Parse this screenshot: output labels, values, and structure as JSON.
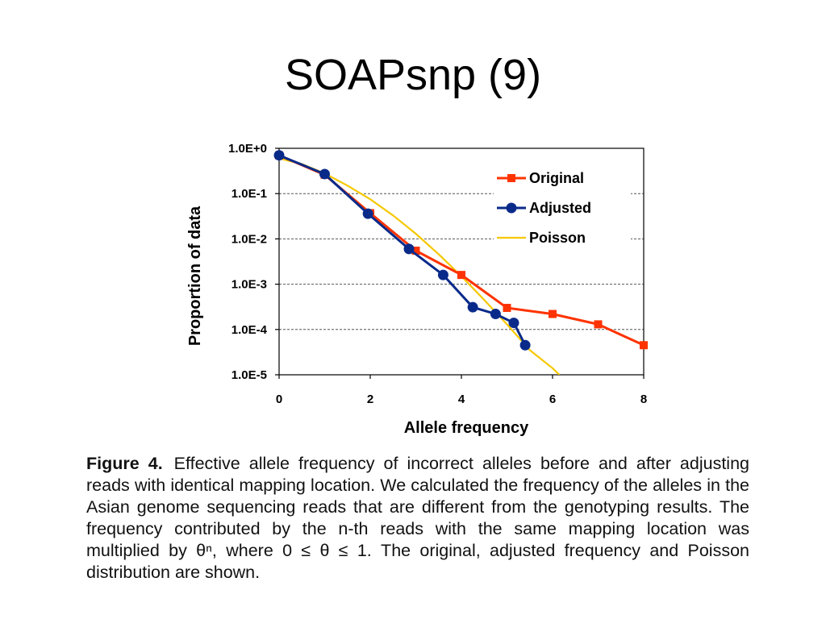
{
  "slide": {
    "title": "SOAPsnp (9)"
  },
  "chart_data": {
    "type": "line",
    "xlabel": "Allele frequency",
    "ylabel": "Proportion of data",
    "x_ticks": [
      0,
      2,
      4,
      6,
      8
    ],
    "y_scale": "log",
    "y_ticks": [
      1,
      0.1,
      0.01,
      0.001,
      0.0001,
      1e-05
    ],
    "y_tick_labels": [
      "1.0E+0",
      "1.0E-1",
      "1.0E-2",
      "1.0E-3",
      "1.0E-4",
      "1.0E-5"
    ],
    "xlim": [
      0,
      8
    ],
    "ylim": [
      1e-05,
      1
    ],
    "grid": "horizontal dashed",
    "legend_position": "top-right",
    "series": [
      {
        "name": "Original",
        "color": "#ff3300",
        "marker": "square",
        "x": [
          0,
          1,
          2,
          3,
          4,
          5,
          6,
          7,
          8
        ],
        "y": [
          0.7,
          0.26,
          0.037,
          0.0055,
          0.0016,
          0.0003,
          0.00022,
          0.00013,
          4.5e-05
        ]
      },
      {
        "name": "Adjusted",
        "color": "#0a2a8a",
        "marker": "circle",
        "x": [
          0,
          1,
          1.95,
          2.85,
          3.6,
          4.25,
          4.75,
          5.15,
          5.4
        ],
        "y": [
          0.7,
          0.27,
          0.036,
          0.006,
          0.0016,
          0.00031,
          0.00022,
          0.00014,
          4.5e-05
        ]
      },
      {
        "name": "Poisson",
        "color": "#f5c800",
        "marker": "none",
        "x": [
          0,
          0.5,
          1,
          1.5,
          2,
          2.5,
          3,
          3.5,
          4,
          4.5,
          5,
          5.5,
          6,
          6.15
        ],
        "y": [
          0.6,
          0.45,
          0.28,
          0.15,
          0.075,
          0.033,
          0.013,
          0.0046,
          0.0015,
          0.00045,
          0.00013,
          3.5e-05,
          1.4e-05,
          1e-05
        ]
      }
    ]
  },
  "caption": {
    "label": "Figure 4.",
    "text": "Effective allele frequency of incorrect alleles before and after adjusting reads with identical mapping location. We calculated the frequency of the alleles in the Asian genome sequencing reads that are different from the genotyping results. The frequency contributed by the n-th reads with the same mapping location was multiplied by θⁿ, where 0 ≤ θ ≤ 1. The original, adjusted frequency and Poisson distribution are shown."
  }
}
